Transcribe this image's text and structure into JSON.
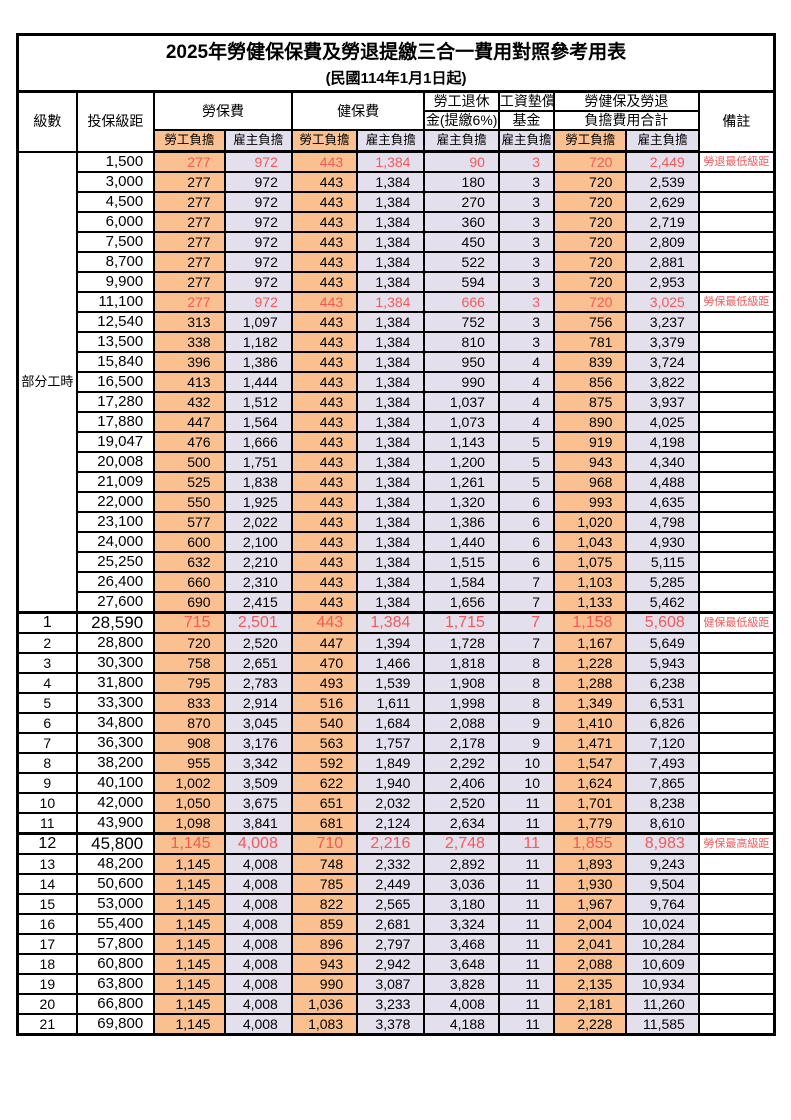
{
  "title": "2025年勞健保保費及勞退提繳三合一費用對照參考用表",
  "subtitle": "(民國114年1月1日起)",
  "colors": {
    "employee_bg": "#FAC08F",
    "employer_bg": "#E4DFEC",
    "highlight_red": "#F25A5A",
    "border": "#000000"
  },
  "header": {
    "level": "級數",
    "bracket": "投保級距",
    "labor_fee": "勞保費",
    "health_fee": "健保費",
    "pension_line1": "勞工退休",
    "pension_line2": "金(提繳6%)",
    "wage_fund_line1": "工資墊償",
    "wage_fund_line2": "基金",
    "total_line1": "勞健保及勞退",
    "total_line2": "負擔費用合計",
    "remark": "備註",
    "employee_share": "勞工負擔",
    "employer_share": "雇主負擔"
  },
  "part_time_label": "部分工時",
  "rows": [
    {
      "lv": "",
      "sal": "1,500",
      "v": [
        "277",
        "972",
        "443",
        "1,384",
        "90",
        "3",
        "720",
        "2,449"
      ],
      "note": "勞退最低級距",
      "red": true,
      "em": false
    },
    {
      "lv": "",
      "sal": "3,000",
      "v": [
        "277",
        "972",
        "443",
        "1,384",
        "180",
        "3",
        "720",
        "2,539"
      ],
      "note": "",
      "red": false,
      "em": false
    },
    {
      "lv": "",
      "sal": "4,500",
      "v": [
        "277",
        "972",
        "443",
        "1,384",
        "270",
        "3",
        "720",
        "2,629"
      ],
      "note": "",
      "red": false,
      "em": false
    },
    {
      "lv": "",
      "sal": "6,000",
      "v": [
        "277",
        "972",
        "443",
        "1,384",
        "360",
        "3",
        "720",
        "2,719"
      ],
      "note": "",
      "red": false,
      "em": false
    },
    {
      "lv": "",
      "sal": "7,500",
      "v": [
        "277",
        "972",
        "443",
        "1,384",
        "450",
        "3",
        "720",
        "2,809"
      ],
      "note": "",
      "red": false,
      "em": false
    },
    {
      "lv": "",
      "sal": "8,700",
      "v": [
        "277",
        "972",
        "443",
        "1,384",
        "522",
        "3",
        "720",
        "2,881"
      ],
      "note": "",
      "red": false,
      "em": false
    },
    {
      "lv": "",
      "sal": "9,900",
      "v": [
        "277",
        "972",
        "443",
        "1,384",
        "594",
        "3",
        "720",
        "2,953"
      ],
      "note": "",
      "red": false,
      "em": false
    },
    {
      "lv": "",
      "sal": "11,100",
      "v": [
        "277",
        "972",
        "443",
        "1,384",
        "666",
        "3",
        "720",
        "3,025"
      ],
      "note": "勞保最低級距",
      "red": true,
      "em": false
    },
    {
      "lv": "",
      "sal": "12,540",
      "v": [
        "313",
        "1,097",
        "443",
        "1,384",
        "752",
        "3",
        "756",
        "3,237"
      ],
      "note": "",
      "red": false,
      "em": false
    },
    {
      "lv": "",
      "sal": "13,500",
      "v": [
        "338",
        "1,182",
        "443",
        "1,384",
        "810",
        "3",
        "781",
        "3,379"
      ],
      "note": "",
      "red": false,
      "em": false
    },
    {
      "lv": "",
      "sal": "15,840",
      "v": [
        "396",
        "1,386",
        "443",
        "1,384",
        "950",
        "4",
        "839",
        "3,724"
      ],
      "note": "",
      "red": false,
      "em": false
    },
    {
      "lv": "",
      "sal": "16,500",
      "v": [
        "413",
        "1,444",
        "443",
        "1,384",
        "990",
        "4",
        "856",
        "3,822"
      ],
      "note": "",
      "red": false,
      "em": false
    },
    {
      "lv": "",
      "sal": "17,280",
      "v": [
        "432",
        "1,512",
        "443",
        "1,384",
        "1,037",
        "4",
        "875",
        "3,937"
      ],
      "note": "",
      "red": false,
      "em": false
    },
    {
      "lv": "",
      "sal": "17,880",
      "v": [
        "447",
        "1,564",
        "443",
        "1,384",
        "1,073",
        "4",
        "890",
        "4,025"
      ],
      "note": "",
      "red": false,
      "em": false
    },
    {
      "lv": "",
      "sal": "19,047",
      "v": [
        "476",
        "1,666",
        "443",
        "1,384",
        "1,143",
        "5",
        "919",
        "4,198"
      ],
      "note": "",
      "red": false,
      "em": false
    },
    {
      "lv": "",
      "sal": "20,008",
      "v": [
        "500",
        "1,751",
        "443",
        "1,384",
        "1,200",
        "5",
        "943",
        "4,340"
      ],
      "note": "",
      "red": false,
      "em": false
    },
    {
      "lv": "",
      "sal": "21,009",
      "v": [
        "525",
        "1,838",
        "443",
        "1,384",
        "1,261",
        "5",
        "968",
        "4,488"
      ],
      "note": "",
      "red": false,
      "em": false
    },
    {
      "lv": "",
      "sal": "22,000",
      "v": [
        "550",
        "1,925",
        "443",
        "1,384",
        "1,320",
        "6",
        "993",
        "4,635"
      ],
      "note": "",
      "red": false,
      "em": false
    },
    {
      "lv": "",
      "sal": "23,100",
      "v": [
        "577",
        "2,022",
        "443",
        "1,384",
        "1,386",
        "6",
        "1,020",
        "4,798"
      ],
      "note": "",
      "red": false,
      "em": false
    },
    {
      "lv": "",
      "sal": "24,000",
      "v": [
        "600",
        "2,100",
        "443",
        "1,384",
        "1,440",
        "6",
        "1,043",
        "4,930"
      ],
      "note": "",
      "red": false,
      "em": false
    },
    {
      "lv": "",
      "sal": "25,250",
      "v": [
        "632",
        "2,210",
        "443",
        "1,384",
        "1,515",
        "6",
        "1,075",
        "5,115"
      ],
      "note": "",
      "red": false,
      "em": false
    },
    {
      "lv": "",
      "sal": "26,400",
      "v": [
        "660",
        "2,310",
        "443",
        "1,384",
        "1,584",
        "7",
        "1,103",
        "5,285"
      ],
      "note": "",
      "red": false,
      "em": false
    },
    {
      "lv": "",
      "sal": "27,600",
      "v": [
        "690",
        "2,415",
        "443",
        "1,384",
        "1,656",
        "7",
        "1,133",
        "5,462"
      ],
      "note": "",
      "red": false,
      "em": false
    },
    {
      "lv": "1",
      "sal": "28,590",
      "v": [
        "715",
        "2,501",
        "443",
        "1,384",
        "1,715",
        "7",
        "1,158",
        "5,608"
      ],
      "note": "健保最低級距",
      "red": true,
      "em": true
    },
    {
      "lv": "2",
      "sal": "28,800",
      "v": [
        "720",
        "2,520",
        "447",
        "1,394",
        "1,728",
        "7",
        "1,167",
        "5,649"
      ],
      "note": "",
      "red": false,
      "em": false
    },
    {
      "lv": "3",
      "sal": "30,300",
      "v": [
        "758",
        "2,651",
        "470",
        "1,466",
        "1,818",
        "8",
        "1,228",
        "5,943"
      ],
      "note": "",
      "red": false,
      "em": false
    },
    {
      "lv": "4",
      "sal": "31,800",
      "v": [
        "795",
        "2,783",
        "493",
        "1,539",
        "1,908",
        "8",
        "1,288",
        "6,238"
      ],
      "note": "",
      "red": false,
      "em": false
    },
    {
      "lv": "5",
      "sal": "33,300",
      "v": [
        "833",
        "2,914",
        "516",
        "1,611",
        "1,998",
        "8",
        "1,349",
        "6,531"
      ],
      "note": "",
      "red": false,
      "em": false
    },
    {
      "lv": "6",
      "sal": "34,800",
      "v": [
        "870",
        "3,045",
        "540",
        "1,684",
        "2,088",
        "9",
        "1,410",
        "6,826"
      ],
      "note": "",
      "red": false,
      "em": false
    },
    {
      "lv": "7",
      "sal": "36,300",
      "v": [
        "908",
        "3,176",
        "563",
        "1,757",
        "2,178",
        "9",
        "1,471",
        "7,120"
      ],
      "note": "",
      "red": false,
      "em": false
    },
    {
      "lv": "8",
      "sal": "38,200",
      "v": [
        "955",
        "3,342",
        "592",
        "1,849",
        "2,292",
        "10",
        "1,547",
        "7,493"
      ],
      "note": "",
      "red": false,
      "em": false
    },
    {
      "lv": "9",
      "sal": "40,100",
      "v": [
        "1,002",
        "3,509",
        "622",
        "1,940",
        "2,406",
        "10",
        "1,624",
        "7,865"
      ],
      "note": "",
      "red": false,
      "em": false
    },
    {
      "lv": "10",
      "sal": "42,000",
      "v": [
        "1,050",
        "3,675",
        "651",
        "2,032",
        "2,520",
        "11",
        "1,701",
        "8,238"
      ],
      "note": "",
      "red": false,
      "em": false
    },
    {
      "lv": "11",
      "sal": "43,900",
      "v": [
        "1,098",
        "3,841",
        "681",
        "2,124",
        "2,634",
        "11",
        "1,779",
        "8,610"
      ],
      "note": "",
      "red": false,
      "em": false
    },
    {
      "lv": "12",
      "sal": "45,800",
      "v": [
        "1,145",
        "4,008",
        "710",
        "2,216",
        "2,748",
        "11",
        "1,855",
        "8,983"
      ],
      "note": "勞保最高級距",
      "red": true,
      "em": true
    },
    {
      "lv": "13",
      "sal": "48,200",
      "v": [
        "1,145",
        "4,008",
        "748",
        "2,332",
        "2,892",
        "11",
        "1,893",
        "9,243"
      ],
      "note": "",
      "red": false,
      "em": false
    },
    {
      "lv": "14",
      "sal": "50,600",
      "v": [
        "1,145",
        "4,008",
        "785",
        "2,449",
        "3,036",
        "11",
        "1,930",
        "9,504"
      ],
      "note": "",
      "red": false,
      "em": false
    },
    {
      "lv": "15",
      "sal": "53,000",
      "v": [
        "1,145",
        "4,008",
        "822",
        "2,565",
        "3,180",
        "11",
        "1,967",
        "9,764"
      ],
      "note": "",
      "red": false,
      "em": false
    },
    {
      "lv": "16",
      "sal": "55,400",
      "v": [
        "1,145",
        "4,008",
        "859",
        "2,681",
        "3,324",
        "11",
        "2,004",
        "10,024"
      ],
      "note": "",
      "red": false,
      "em": false
    },
    {
      "lv": "17",
      "sal": "57,800",
      "v": [
        "1,145",
        "4,008",
        "896",
        "2,797",
        "3,468",
        "11",
        "2,041",
        "10,284"
      ],
      "note": "",
      "red": false,
      "em": false
    },
    {
      "lv": "18",
      "sal": "60,800",
      "v": [
        "1,145",
        "4,008",
        "943",
        "2,942",
        "3,648",
        "11",
        "2,088",
        "10,609"
      ],
      "note": "",
      "red": false,
      "em": false
    },
    {
      "lv": "19",
      "sal": "63,800",
      "v": [
        "1,145",
        "4,008",
        "990",
        "3,087",
        "3,828",
        "11",
        "2,135",
        "10,934"
      ],
      "note": "",
      "red": false,
      "em": false
    },
    {
      "lv": "20",
      "sal": "66,800",
      "v": [
        "1,145",
        "4,008",
        "1,036",
        "3,233",
        "4,008",
        "11",
        "2,181",
        "11,260"
      ],
      "note": "",
      "red": false,
      "em": false
    },
    {
      "lv": "21",
      "sal": "69,800",
      "v": [
        "1,145",
        "4,008",
        "1,083",
        "3,378",
        "4,188",
        "11",
        "2,228",
        "11,585"
      ],
      "note": "",
      "red": false,
      "em": false
    }
  ],
  "value_column_shares": [
    "employee",
    "employer",
    "employee",
    "employer",
    "employer",
    "employer",
    "employee",
    "employer"
  ]
}
